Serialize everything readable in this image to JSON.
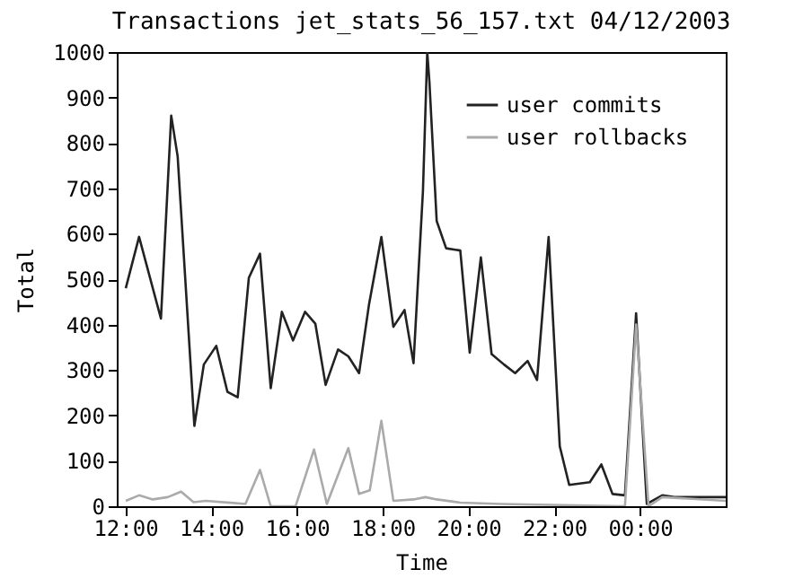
{
  "chart_data": {
    "type": "line",
    "title": "Transactions   jet_stats_56_157.txt   04/12/2003",
    "xlabel": "Time",
    "ylabel": "Total",
    "xlim": [
      11.8,
      26.0
    ],
    "xticks": [
      {
        "value": 12,
        "label": "12:00"
      },
      {
        "value": 14,
        "label": "14:00"
      },
      {
        "value": 16,
        "label": "16:00"
      },
      {
        "value": 18,
        "label": "18:00"
      },
      {
        "value": 20,
        "label": "20:00"
      },
      {
        "value": 22,
        "label": "22:00"
      },
      {
        "value": 24,
        "label": "00:00"
      }
    ],
    "ylim": [
      0,
      1000
    ],
    "yticks": [
      0,
      100,
      200,
      300,
      400,
      500,
      600,
      700,
      800,
      900,
      1000
    ],
    "grid": false,
    "legend": "top right",
    "line_style": "solid",
    "marker": "none",
    "series": [
      {
        "name": "user commits",
        "color": "#222222",
        "x": [
          12.01,
          12.32,
          12.83,
          13.07,
          13.22,
          13.61,
          13.83,
          14.12,
          14.38,
          14.62,
          14.88,
          15.14,
          15.39,
          15.65,
          15.91,
          16.19,
          16.43,
          16.67,
          16.96,
          17.2,
          17.45,
          17.68,
          17.97,
          18.25,
          18.51,
          18.72,
          18.94,
          19.04,
          19.09,
          19.26,
          19.48,
          19.81,
          20.03,
          20.29,
          20.54,
          20.83,
          21.09,
          21.38,
          21.6,
          21.87,
          22.13,
          22.35,
          22.83,
          23.1,
          23.36,
          23.65,
          23.91,
          24.16,
          24.52,
          24.8,
          26.0
        ],
        "values": [
          480,
          593,
          413,
          860,
          770,
          177,
          312,
          353,
          252,
          240,
          503,
          556,
          260,
          428,
          365,
          428,
          402,
          267,
          345,
          330,
          293,
          443,
          593,
          395,
          432,
          315,
          695,
          1000,
          935,
          628,
          568,
          563,
          338,
          548,
          335,
          312,
          293,
          320,
          278,
          593,
          132,
          47,
          53,
          92,
          27,
          24,
          425,
          5,
          24,
          20,
          20
        ]
      },
      {
        "name": "user rollbacks",
        "color": "#aaaaaa",
        "x": [
          12.01,
          12.32,
          12.64,
          12.99,
          13.3,
          13.59,
          13.88,
          14.8,
          15.14,
          15.39,
          15.97,
          16.4,
          16.7,
          17.2,
          17.45,
          17.7,
          17.97,
          18.25,
          18.72,
          19.0,
          19.26,
          19.81,
          20.75,
          23.65,
          23.91,
          24.2,
          24.52,
          26.0
        ],
        "values": [
          12,
          24,
          15,
          20,
          32,
          9,
          12,
          5,
          80,
          0,
          0,
          125,
          5,
          128,
          27,
          35,
          188,
          12,
          15,
          20,
          15,
          8,
          5,
          0,
          400,
          0,
          20,
          12
        ]
      }
    ]
  }
}
